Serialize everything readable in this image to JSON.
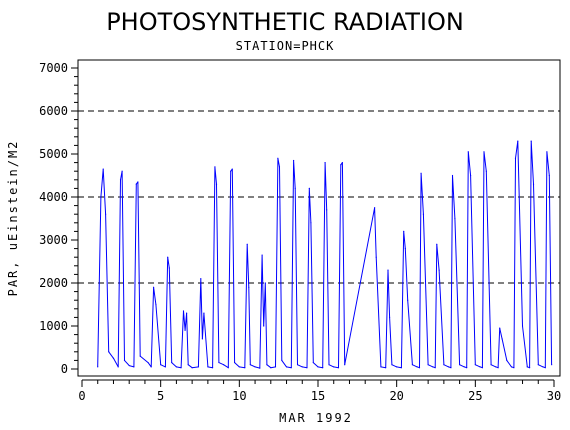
{
  "chart_data": {
    "type": "line",
    "title": "PHOTOSYNTHETIC RADIATION",
    "subtitle": "STATION=PHCK",
    "xlabel": "MAR 1992",
    "ylabel": "PAR, uEinstein/M2",
    "xlim": [
      0,
      30
    ],
    "ylim": [
      0,
      7000
    ],
    "x_ticks": [
      0,
      5,
      10,
      15,
      20,
      25,
      30
    ],
    "y_ticks": [
      0,
      1000,
      2000,
      3000,
      4000,
      5000,
      6000,
      7000
    ],
    "y_reference_lines": [
      2000,
      4000,
      6000
    ],
    "grid": false,
    "line_color": "#0000ff",
    "series": [
      {
        "x": [
          1.0,
          1.2,
          1.35,
          1.5,
          1.7,
          2.0,
          2.3,
          2.45,
          2.55,
          2.7,
          3.0,
          3.3,
          3.45,
          3.55,
          3.7,
          4.2,
          4.4,
          4.55,
          4.7,
          5.0,
          5.3,
          5.45,
          5.55,
          5.7,
          6.0,
          6.3,
          6.45,
          6.55,
          6.65,
          6.75,
          7.0,
          7.4,
          7.55,
          7.65,
          7.75,
          8.0,
          8.3,
          8.45,
          8.55,
          8.7,
          9.0,
          9.3,
          9.45,
          9.55,
          9.7,
          10.0,
          10.35,
          10.5,
          10.6,
          10.7,
          11.0,
          11.3,
          11.45,
          11.55,
          11.65,
          11.75,
          12.0,
          12.3,
          12.45,
          12.55,
          12.7,
          13.0,
          13.3,
          13.45,
          13.55,
          13.7,
          14.0,
          14.3,
          14.45,
          14.55,
          14.7,
          15.0,
          15.3,
          15.45,
          15.55,
          15.7,
          16.0,
          16.3,
          16.45,
          16.55,
          16.7,
          18.6,
          18.7,
          19.0,
          19.3,
          19.45,
          19.55,
          19.7,
          20.0,
          20.3,
          20.45,
          20.55,
          20.7,
          21.0,
          21.3,
          21.45,
          21.55,
          21.7,
          22.0,
          22.3,
          22.45,
          22.55,
          22.7,
          23.0,
          23.3,
          23.45,
          23.55,
          23.7,
          24.0,
          24.3,
          24.45,
          24.55,
          24.7,
          25.0,
          25.3,
          25.45,
          25.55,
          25.7,
          26.0,
          26.3,
          26.45,
          26.55,
          26.7,
          27.0,
          27.3,
          27.45,
          27.55,
          27.7,
          28.0,
          28.3,
          28.45,
          28.55,
          28.7,
          29.0,
          29.3,
          29.45,
          29.55,
          29.7,
          29.85
        ],
        "values": [
          50,
          4000,
          4650,
          3600,
          400,
          250,
          50,
          4400,
          4600,
          200,
          80,
          50,
          4300,
          4350,
          300,
          150,
          50,
          1900,
          1500,
          100,
          50,
          2600,
          2350,
          150,
          50,
          30,
          1350,
          900,
          1300,
          100,
          30,
          50,
          2100,
          700,
          1300,
          50,
          30,
          4700,
          4300,
          150,
          100,
          30,
          4600,
          4650,
          150,
          50,
          30,
          2900,
          1900,
          100,
          50,
          20,
          2650,
          1000,
          2000,
          100,
          30,
          50,
          4900,
          4700,
          200,
          50,
          30,
          4850,
          4200,
          100,
          50,
          30,
          4200,
          3400,
          150,
          50,
          30,
          4800,
          3700,
          100,
          50,
          30,
          4750,
          4800,
          100,
          3750,
          2600,
          50,
          30,
          2300,
          1200,
          100,
          50,
          30,
          3200,
          2800,
          1600,
          100,
          50,
          30,
          4550,
          3600,
          100,
          50,
          30,
          2900,
          2300,
          100,
          50,
          30,
          4500,
          3500,
          100,
          50,
          30,
          5050,
          4500,
          100,
          50,
          30,
          5050,
          4600,
          100,
          50,
          30,
          950,
          700,
          200,
          50,
          30,
          4900,
          5300,
          1000,
          50,
          30,
          5300,
          4300,
          100,
          50,
          30,
          5050,
          4500,
          100
        ]
      }
    ]
  }
}
